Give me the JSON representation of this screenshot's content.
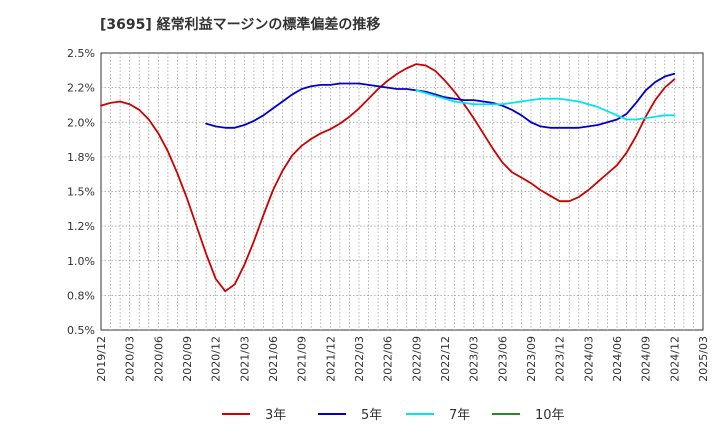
{
  "chart_data": {
    "type": "line",
    "title": "[3695]  経常利益マージンの標準偏差の推移",
    "xlabel": "",
    "ylabel": "",
    "ylim": [
      0.005,
      0.025
    ],
    "y_ticks": [
      "0.5%",
      "0.8%",
      "1.0%",
      "1.2%",
      "1.5%",
      "1.8%",
      "2.0%",
      "2.2%",
      "2.5%"
    ],
    "x_ticks": [
      "2019/12",
      "2020/03",
      "2020/06",
      "2020/09",
      "2020/12",
      "2021/03",
      "2021/06",
      "2021/09",
      "2021/12",
      "2022/03",
      "2022/06",
      "2022/09",
      "2022/12",
      "2023/03",
      "2023/06",
      "2023/09",
      "2023/12",
      "2024/03",
      "2024/06",
      "2024/09",
      "2024/12",
      "2025/03"
    ],
    "x_range": [
      "2019/12",
      "2025/03"
    ],
    "grid": true,
    "legend_position": "bottom",
    "series": [
      {
        "name": "3年",
        "color": "#cc0000",
        "points": [
          [
            "2019/12",
            0.0212
          ],
          [
            "2020/01",
            0.0214
          ],
          [
            "2020/02",
            0.0215
          ],
          [
            "2020/03",
            0.0213
          ],
          [
            "2020/04",
            0.0209
          ],
          [
            "2020/05",
            0.0202
          ],
          [
            "2020/06",
            0.0192
          ],
          [
            "2020/07",
            0.0179
          ],
          [
            "2020/08",
            0.0163
          ],
          [
            "2020/09",
            0.0145
          ],
          [
            "2020/10",
            0.0125
          ],
          [
            "2020/11",
            0.0105
          ],
          [
            "2020/12",
            0.0087
          ],
          [
            "2021/01",
            0.0078
          ],
          [
            "2021/02",
            0.0083
          ],
          [
            "2021/03",
            0.0097
          ],
          [
            "2021/04",
            0.0114
          ],
          [
            "2021/05",
            0.0133
          ],
          [
            "2021/06",
            0.0151
          ],
          [
            "2021/07",
            0.0165
          ],
          [
            "2021/08",
            0.0176
          ],
          [
            "2021/09",
            0.0183
          ],
          [
            "2021/10",
            0.0188
          ],
          [
            "2021/11",
            0.0192
          ],
          [
            "2021/12",
            0.0195
          ],
          [
            "2022/01",
            0.0199
          ],
          [
            "2022/02",
            0.0204
          ],
          [
            "2022/03",
            0.021
          ],
          [
            "2022/04",
            0.0217
          ],
          [
            "2022/05",
            0.0224
          ],
          [
            "2022/06",
            0.023
          ],
          [
            "2022/07",
            0.0235
          ],
          [
            "2022/08",
            0.0239
          ],
          [
            "2022/09",
            0.0242
          ],
          [
            "2022/10",
            0.0241
          ],
          [
            "2022/11",
            0.0237
          ],
          [
            "2022/12",
            0.023
          ],
          [
            "2023/01",
            0.0222
          ],
          [
            "2023/02",
            0.0213
          ],
          [
            "2023/03",
            0.0203
          ],
          [
            "2023/04",
            0.0192
          ],
          [
            "2023/05",
            0.0181
          ],
          [
            "2023/06",
            0.0171
          ],
          [
            "2023/07",
            0.0164
          ],
          [
            "2023/08",
            0.016
          ],
          [
            "2023/09",
            0.0156
          ],
          [
            "2023/10",
            0.0151
          ],
          [
            "2023/11",
            0.0147
          ],
          [
            "2023/12",
            0.0143
          ],
          [
            "2024/01",
            0.0143
          ],
          [
            "2024/02",
            0.0146
          ],
          [
            "2024/03",
            0.0151
          ],
          [
            "2024/04",
            0.0157
          ],
          [
            "2024/05",
            0.0163
          ],
          [
            "2024/06",
            0.0169
          ],
          [
            "2024/07",
            0.0178
          ],
          [
            "2024/08",
            0.019
          ],
          [
            "2024/09",
            0.0204
          ],
          [
            "2024/10",
            0.0216
          ],
          [
            "2024/11",
            0.0225
          ],
          [
            "2024/12",
            0.0231
          ]
        ]
      },
      {
        "name": "5年",
        "color": "#0000cc",
        "points": [
          [
            "2020/11",
            0.0199
          ],
          [
            "2020/12",
            0.0197
          ],
          [
            "2021/01",
            0.0196
          ],
          [
            "2021/02",
            0.0196
          ],
          [
            "2021/03",
            0.0198
          ],
          [
            "2021/04",
            0.0201
          ],
          [
            "2021/05",
            0.0205
          ],
          [
            "2021/06",
            0.021
          ],
          [
            "2021/07",
            0.0215
          ],
          [
            "2021/08",
            0.022
          ],
          [
            "2021/09",
            0.0224
          ],
          [
            "2021/10",
            0.0226
          ],
          [
            "2021/11",
            0.0227
          ],
          [
            "2021/12",
            0.0227
          ],
          [
            "2022/01",
            0.0228
          ],
          [
            "2022/02",
            0.0228
          ],
          [
            "2022/03",
            0.0228
          ],
          [
            "2022/04",
            0.0227
          ],
          [
            "2022/05",
            0.0226
          ],
          [
            "2022/06",
            0.0225
          ],
          [
            "2022/07",
            0.0224
          ],
          [
            "2022/08",
            0.0224
          ],
          [
            "2022/09",
            0.0223
          ],
          [
            "2022/10",
            0.0222
          ],
          [
            "2022/11",
            0.022
          ],
          [
            "2022/12",
            0.0218
          ],
          [
            "2023/01",
            0.0217
          ],
          [
            "2023/02",
            0.0216
          ],
          [
            "2023/03",
            0.0216
          ],
          [
            "2023/04",
            0.0215
          ],
          [
            "2023/05",
            0.0214
          ],
          [
            "2023/06",
            0.0212
          ],
          [
            "2023/07",
            0.0209
          ],
          [
            "2023/08",
            0.0205
          ],
          [
            "2023/09",
            0.02
          ],
          [
            "2023/10",
            0.0197
          ],
          [
            "2023/11",
            0.0196
          ],
          [
            "2023/12",
            0.0196
          ],
          [
            "2024/01",
            0.0196
          ],
          [
            "2024/02",
            0.0196
          ],
          [
            "2024/03",
            0.0197
          ],
          [
            "2024/04",
            0.0198
          ],
          [
            "2024/05",
            0.02
          ],
          [
            "2024/06",
            0.0202
          ],
          [
            "2024/07",
            0.0206
          ],
          [
            "2024/08",
            0.0214
          ],
          [
            "2024/09",
            0.0223
          ],
          [
            "2024/10",
            0.0229
          ],
          [
            "2024/11",
            0.0233
          ],
          [
            "2024/12",
            0.0235
          ]
        ]
      },
      {
        "name": "7年",
        "color": "#00e5ee",
        "points": [
          [
            "2022/09",
            0.0223
          ],
          [
            "2022/10",
            0.0221
          ],
          [
            "2022/11",
            0.0219
          ],
          [
            "2022/12",
            0.0217
          ],
          [
            "2023/01",
            0.0215
          ],
          [
            "2023/02",
            0.0214
          ],
          [
            "2023/03",
            0.0213
          ],
          [
            "2023/04",
            0.0213
          ],
          [
            "2023/05",
            0.0213
          ],
          [
            "2023/06",
            0.0213
          ],
          [
            "2023/07",
            0.0214
          ],
          [
            "2023/08",
            0.0215
          ],
          [
            "2023/09",
            0.0216
          ],
          [
            "2023/10",
            0.0217
          ],
          [
            "2023/11",
            0.0217
          ],
          [
            "2023/12",
            0.0217
          ],
          [
            "2024/01",
            0.0216
          ],
          [
            "2024/02",
            0.0215
          ],
          [
            "2024/03",
            0.0213
          ],
          [
            "2024/04",
            0.0211
          ],
          [
            "2024/05",
            0.0208
          ],
          [
            "2024/06",
            0.0205
          ],
          [
            "2024/07",
            0.0202
          ],
          [
            "2024/08",
            0.0202
          ],
          [
            "2024/09",
            0.0203
          ],
          [
            "2024/10",
            0.0204
          ],
          [
            "2024/11",
            0.0205
          ],
          [
            "2024/12",
            0.0205
          ]
        ]
      },
      {
        "name": "10年",
        "color": "#228b22",
        "points": []
      }
    ]
  }
}
